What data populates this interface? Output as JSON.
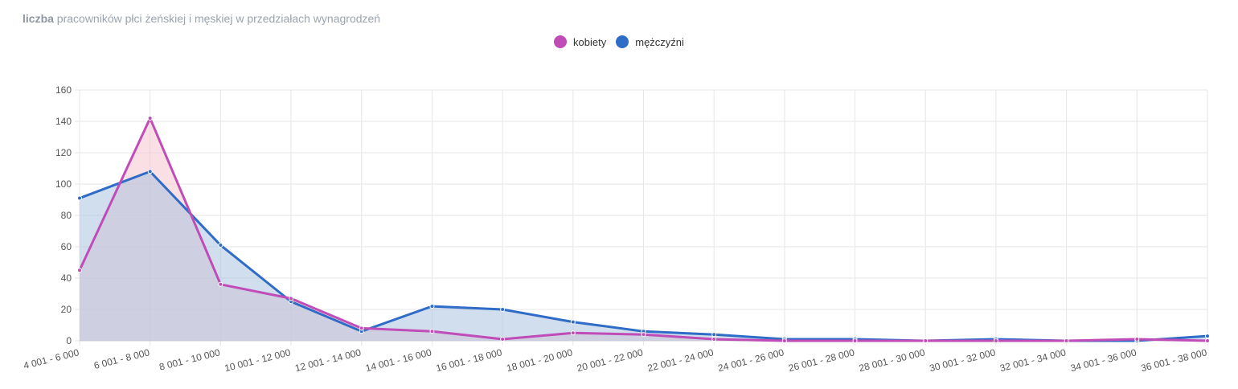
{
  "title": {
    "strong": "liczba",
    "rest": "pracowników płci żeńskiej i męskiej w przedziałach wynagrodzeń"
  },
  "chart_data": {
    "type": "line",
    "categories": [
      "4 001 - 6 000",
      "6 001 - 8 000",
      "8 001 - 10 000",
      "10 001 - 12 000",
      "12 001 - 14 000",
      "14 001 - 16 000",
      "16 001 - 18 000",
      "18 001 - 20 000",
      "20 001 - 22 000",
      "22 001 - 24 000",
      "24 001 - 26 000",
      "26 001 - 28 000",
      "28 001 - 30 000",
      "30 001 - 32 000",
      "32 001 - 34 000",
      "34 001 - 36 000",
      "36 001 - 38 000"
    ],
    "series": [
      {
        "name": "kobiety",
        "color": "#c04cb8",
        "fill": "#f6c6cf",
        "values": [
          45,
          142,
          36,
          27,
          8,
          6,
          1,
          5,
          4,
          1,
          0,
          0,
          0,
          0,
          0,
          1,
          0
        ]
      },
      {
        "name": "mężczyźni",
        "color": "#2f6cc7",
        "fill": "#a9c3e0",
        "values": [
          91,
          108,
          61,
          25,
          6,
          22,
          20,
          12,
          6,
          4,
          1,
          1,
          0,
          1,
          0,
          0,
          3
        ]
      }
    ],
    "ylim": [
      0,
      160
    ],
    "yticks": [
      0,
      20,
      40,
      60,
      80,
      100,
      120,
      140,
      160
    ],
    "grid": true,
    "legend": "top-center",
    "area": true
  }
}
